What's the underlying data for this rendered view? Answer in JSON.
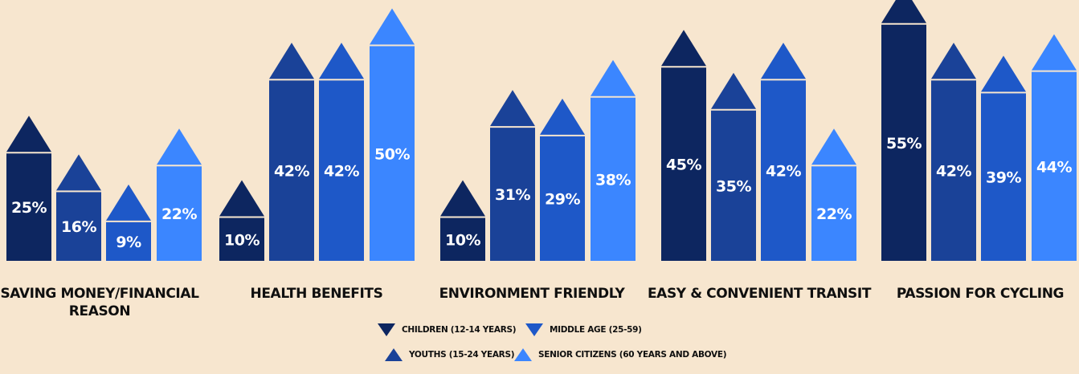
{
  "chart_data": {
    "type": "bar",
    "categories": [
      "SAVING  MONEY/FINANCIAL REASON",
      "HEALTH BENEFITS",
      "ENVIRONMENT FRIENDLY",
      "EASY & CONVENIENT TRANSIT",
      "PASSION FOR CYCLING"
    ],
    "series": [
      {
        "name": "CHILDREN (12-14 YEARS)",
        "color": "#0d2660",
        "values": [
          25,
          10,
          10,
          45,
          55
        ]
      },
      {
        "name": "YOUTHS (15-24 YEARS)",
        "color": "#1a4298",
        "values": [
          16,
          42,
          31,
          35,
          42
        ]
      },
      {
        "name": "MIDDLE AGE (25-59)",
        "color": "#1e58c8",
        "values": [
          9,
          42,
          29,
          42,
          39
        ]
      },
      {
        "name": "SENIOR CITIZENS (60 YEARS AND ABOVE)",
        "color": "#3b86ff",
        "values": [
          22,
          50,
          38,
          22,
          44
        ]
      }
    ],
    "value_suffix": "%",
    "grid": false,
    "legend_position": "bottom-center"
  }
}
